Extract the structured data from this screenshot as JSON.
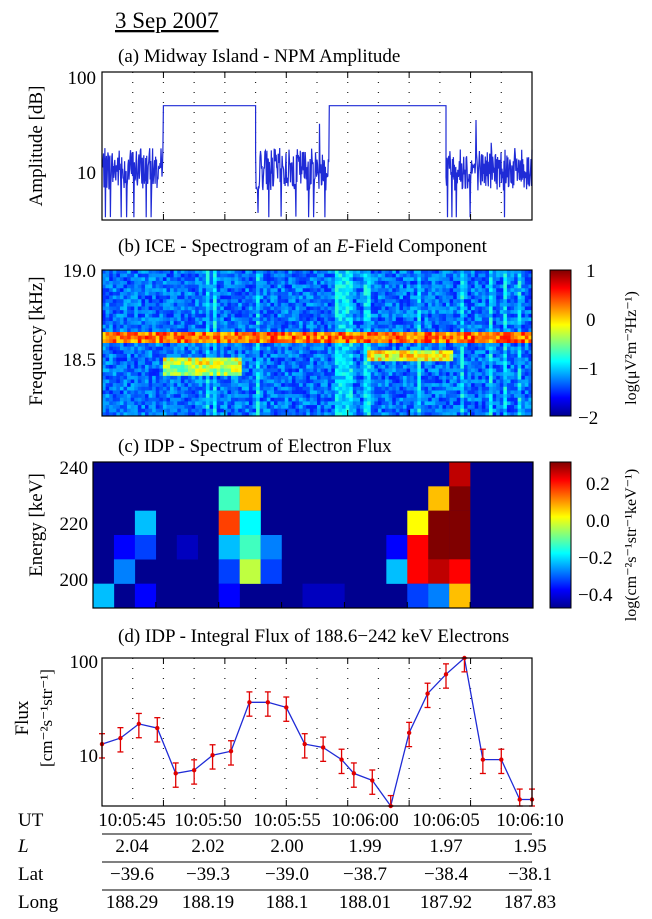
{
  "date": "3 Sep 2007",
  "colors": {
    "line": "#1f2bd6",
    "flux_marker": "#e00000",
    "grid": "#222222"
  },
  "panels": {
    "a": {
      "title": "(a) Midway Island - NPM Amplitude",
      "ylabel": "Amplitude [dB]",
      "yticks": [
        "100",
        "10"
      ]
    },
    "b": {
      "title_prefix": "(b) ICE - Spectrogram of an ",
      "title_italic": "E",
      "title_suffix": "-Field Component",
      "ylabel": "Frequency [kHz]",
      "yticks": [
        "19.0",
        "18.5"
      ],
      "cbar_label": "log(μV²m⁻²Hz⁻¹)",
      "cbar_ticks": [
        "1",
        "0",
        "−1",
        "−2"
      ]
    },
    "c": {
      "title": "(c) IDP - Spectrum of Electron Flux",
      "ylabel": "Energy [keV]",
      "yticks": [
        "240",
        "220",
        "200"
      ],
      "cbar_label": "log(cm⁻²s⁻¹str⁻¹keV⁻¹)",
      "cbar_ticks": [
        "0.2",
        "0.0",
        "−0.2",
        "−0.4"
      ]
    },
    "d": {
      "title": "(d) IDP - Integral Flux of 188.6−242 keV Electrons",
      "ylabel_1": "Flux",
      "ylabel_2": "[cm⁻²s⁻¹str⁻¹]",
      "yticks": [
        "100",
        "10"
      ]
    }
  },
  "axis_table": {
    "rows": [
      {
        "label": "UT",
        "italic": false,
        "values": [
          "10:05:45",
          "10:05:50",
          "10:05:55",
          "10:06:00",
          "10:06:05",
          "10:06:10"
        ]
      },
      {
        "label": "L",
        "italic": true,
        "values": [
          "2.04",
          "2.02",
          "2.00",
          "1.99",
          "1.97",
          "1.95"
        ]
      },
      {
        "label": "Lat",
        "italic": false,
        "values": [
          "−39.6",
          "−39.3",
          "−39.0",
          "−38.7",
          "−38.4",
          "−38.1"
        ]
      },
      {
        "label": "Long",
        "italic": false,
        "values": [
          "188.29",
          "188.19",
          "188.1",
          "188.01",
          "187.92",
          "187.83"
        ]
      }
    ]
  },
  "chart_data": [
    {
      "type": "line",
      "panel": "a",
      "x_unit": "s after 10:05:40 UT",
      "xlim": [
        4,
        11
      ],
      "ylim": [
        3,
        100
      ],
      "yscale": "log",
      "y_segments_noise": [
        [
          4.0,
          5.0
        ],
        [
          6.5,
          7.7
        ],
        [
          9.6,
          11.0
        ]
      ],
      "noise_level_db": 10,
      "y_flat_level": 45,
      "flat_segments": [
        [
          5.0,
          6.5
        ],
        [
          7.7,
          9.6
        ]
      ]
    },
    {
      "type": "heatmap",
      "panel": "b",
      "ylim": [
        18.2,
        19.0
      ],
      "clim": [
        -2,
        1
      ],
      "background": -1.3,
      "bands": [
        {
          "y": 18.62,
          "x_start": 4.0,
          "x_end": 11.0,
          "value": 0.3
        },
        {
          "y": 18.5,
          "x_start": 5.0,
          "x_end": 6.3,
          "value": -0.2
        },
        {
          "y": 18.45,
          "x_start": 5.0,
          "x_end": 6.3,
          "value": -0.4
        },
        {
          "y": 18.53,
          "x_start": 8.3,
          "x_end": 9.7,
          "value": -0.1
        }
      ]
    },
    {
      "type": "heatmap",
      "panel": "c",
      "ylim": [
        190,
        245
      ],
      "clim": [
        -0.5,
        0.3
      ],
      "background": -0.5,
      "energy_bins": [
        241,
        230,
        220,
        210,
        200,
        190
      ],
      "time_bins": [
        4.1,
        4.4,
        4.7,
        5.0,
        5.3,
        5.6,
        5.9,
        6.2,
        6.5,
        6.8,
        7.1,
        7.4,
        7.7,
        8.0,
        8.3,
        8.6,
        8.9,
        9.2,
        9.5,
        9.8,
        10.1
      ],
      "cells": [
        {
          "t": 9.2,
          "e": 241,
          "v": 0.25
        },
        {
          "t": 8.9,
          "e": 230,
          "v": 0.05
        },
        {
          "t": 9.2,
          "e": 230,
          "v": 0.3
        },
        {
          "t": 8.6,
          "e": 220,
          "v": 0.0
        },
        {
          "t": 8.9,
          "e": 220,
          "v": 0.3
        },
        {
          "t": 9.2,
          "e": 220,
          "v": 0.32
        },
        {
          "t": 8.3,
          "e": 210,
          "v": -0.4
        },
        {
          "t": 8.6,
          "e": 210,
          "v": 0.2
        },
        {
          "t": 8.9,
          "e": 210,
          "v": 0.3
        },
        {
          "t": 9.2,
          "e": 210,
          "v": 0.32
        },
        {
          "t": 8.3,
          "e": 200,
          "v": -0.25
        },
        {
          "t": 8.6,
          "e": 200,
          "v": 0.2
        },
        {
          "t": 8.9,
          "e": 200,
          "v": 0.25
        },
        {
          "t": 9.2,
          "e": 200,
          "v": 0.2
        },
        {
          "t": 8.6,
          "e": 190,
          "v": -0.35
        },
        {
          "t": 8.9,
          "e": 190,
          "v": -0.3
        },
        {
          "t": 9.2,
          "e": 190,
          "v": 0.05
        },
        {
          "t": 5.9,
          "e": 230,
          "v": -0.15
        },
        {
          "t": 6.2,
          "e": 230,
          "v": 0.05
        },
        {
          "t": 5.9,
          "e": 220,
          "v": 0.15
        },
        {
          "t": 6.2,
          "e": 220,
          "v": -0.2
        },
        {
          "t": 5.9,
          "e": 210,
          "v": -0.25
        },
        {
          "t": 6.2,
          "e": 210,
          "v": -0.15
        },
        {
          "t": 6.5,
          "e": 210,
          "v": -0.3
        },
        {
          "t": 5.9,
          "e": 200,
          "v": -0.35
        },
        {
          "t": 6.2,
          "e": 200,
          "v": -0.05
        },
        {
          "t": 6.5,
          "e": 200,
          "v": -0.35
        },
        {
          "t": 5.9,
          "e": 190,
          "v": -0.4
        },
        {
          "t": 4.7,
          "e": 220,
          "v": -0.25
        },
        {
          "t": 4.4,
          "e": 210,
          "v": -0.4
        },
        {
          "t": 4.7,
          "e": 210,
          "v": -0.35
        },
        {
          "t": 4.4,
          "e": 200,
          "v": -0.3
        },
        {
          "t": 4.7,
          "e": 190,
          "v": -0.4
        },
        {
          "t": 4.1,
          "e": 190,
          "v": -0.25
        },
        {
          "t": 5.3,
          "e": 210,
          "v": -0.45
        },
        {
          "t": 7.1,
          "e": 190,
          "v": -0.45
        },
        {
          "t": 7.4,
          "e": 190,
          "v": -0.45
        }
      ]
    },
    {
      "type": "line",
      "panel": "d",
      "xlim": [
        4,
        11
      ],
      "ylim": [
        3,
        100
      ],
      "yscale": "log",
      "x": [
        4.0,
        4.3,
        4.6,
        4.9,
        5.2,
        5.5,
        5.8,
        6.1,
        6.4,
        6.7,
        7.0,
        7.3,
        7.6,
        7.9,
        8.1,
        8.4,
        8.7,
        9.0,
        9.3,
        9.6,
        9.9,
        10.2,
        10.5
      ],
      "y": [
        13,
        15,
        21,
        19,
        6.5,
        7.0,
        10,
        11,
        35,
        35,
        31,
        13,
        12,
        9,
        6.5,
        5.5,
        3,
        17,
        43,
        68,
        100,
        9,
        9
      ],
      "y_extra": [
        [
          10.8,
          3.5
        ],
        [
          11.0,
          3.5
        ]
      ],
      "err_frac": 0.28
    }
  ]
}
